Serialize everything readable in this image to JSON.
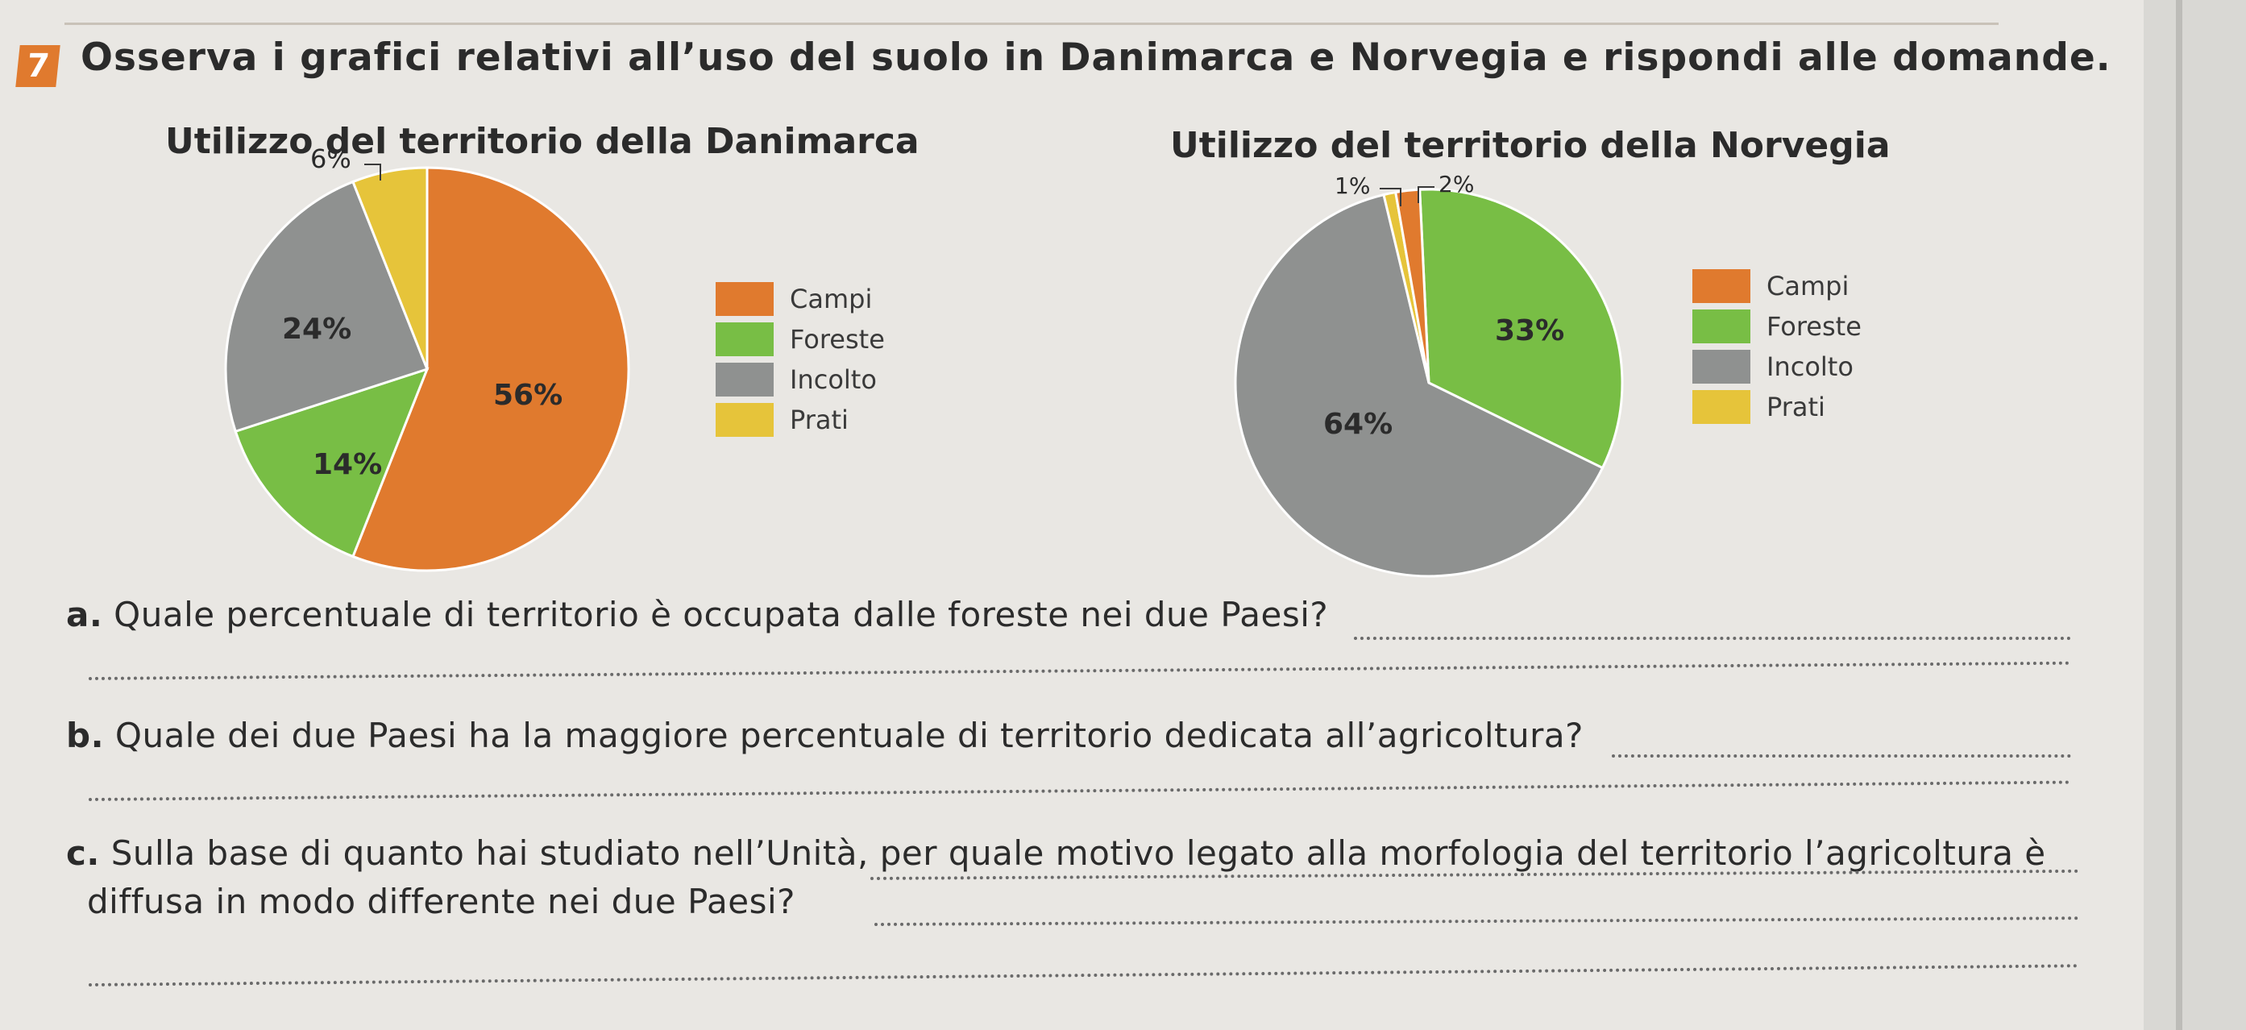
{
  "exercise": {
    "number": "7",
    "instruction": "Osserva i grafici relativi all’uso del suolo in Danimarca e Norvegia e rispondi alle domande."
  },
  "chart_data": [
    {
      "type": "pie",
      "title": "Utilizzo del territorio della Danimarca",
      "legend": [
        "Campi",
        "Foreste",
        "Incolto",
        "Prati"
      ],
      "legend_position": "right",
      "slices": [
        {
          "name": "Campi",
          "value": 56,
          "label": "56%",
          "color": "#e07a2e"
        },
        {
          "name": "Foreste",
          "value": 14,
          "label": "14%",
          "color": "#78be45"
        },
        {
          "name": "Incolto",
          "value": 24,
          "label": "24%",
          "color": "#8f9190"
        },
        {
          "name": "Prati",
          "value": 6,
          "label": "6%",
          "color": "#e6c43a"
        }
      ]
    },
    {
      "type": "pie",
      "title": "Utilizzo del territorio della Norvegia",
      "legend": [
        "Campi",
        "Foreste",
        "Incolto",
        "Prati"
      ],
      "legend_position": "right",
      "slices": [
        {
          "name": "Foreste",
          "value": 33,
          "label": "33%",
          "color": "#78be45"
        },
        {
          "name": "Incolto",
          "value": 64,
          "label": "64%",
          "color": "#8f9190"
        },
        {
          "name": "Prati",
          "value": 1,
          "label": "1%",
          "color": "#e6c43a"
        },
        {
          "name": "Campi",
          "value": 2,
          "label": "2%",
          "color": "#e07a2e"
        }
      ]
    }
  ],
  "questions": [
    {
      "letter": "a.",
      "text": "Quale percentuale di territorio è occupata dalle foreste nei due Paesi?"
    },
    {
      "letter": "b.",
      "text": "Quale dei due Paesi ha la maggiore percentuale di territorio dedicata all’agricoltura?"
    },
    {
      "letter": "c.",
      "text": "Sulla base di quanto hai studiato nell’Unità, per quale motivo legato alla morfologia del territorio l’agricoltura è",
      "text2": "diffusa in modo differente nei due Paesi?"
    }
  ]
}
